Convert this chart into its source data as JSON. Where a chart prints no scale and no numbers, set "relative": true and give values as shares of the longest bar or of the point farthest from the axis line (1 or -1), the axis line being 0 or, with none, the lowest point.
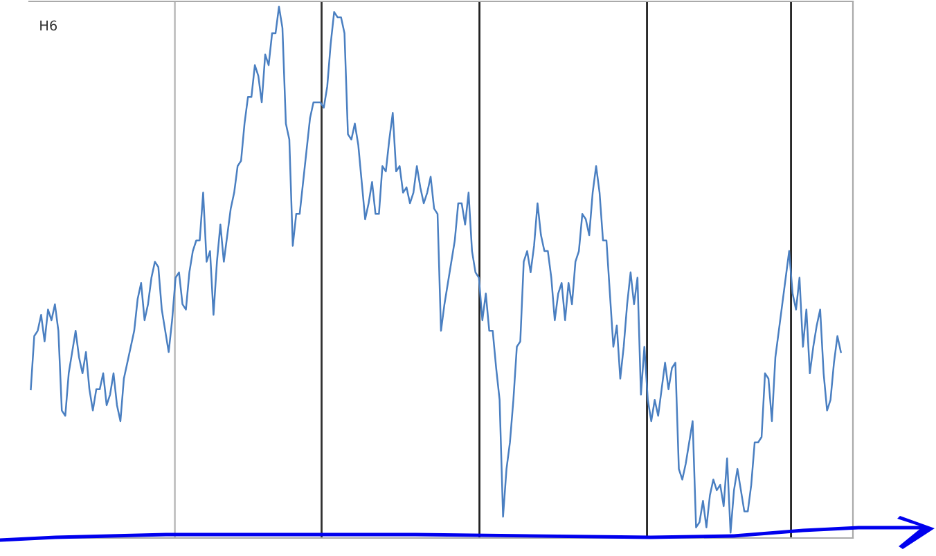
{
  "chart_data": {
    "type": "line",
    "title": "H6",
    "relative": true,
    "marker": "none",
    "line_style": "solid",
    "categories": [
      null,
      null,
      null,
      null,
      null,
      null,
      null,
      null,
      null,
      null,
      null,
      null,
      null,
      null,
      null,
      null,
      null,
      null,
      null,
      null,
      null,
      null,
      null,
      null,
      null,
      null,
      null,
      null,
      null,
      null,
      null,
      null,
      null,
      null,
      null,
      null,
      null,
      null,
      null,
      null,
      null,
      null,
      null,
      null,
      null,
      null,
      null,
      null,
      null,
      null,
      null,
      null,
      null,
      null,
      null,
      null,
      null,
      null,
      null,
      null,
      null,
      null,
      null,
      null,
      null,
      null,
      null,
      null,
      null,
      null,
      null,
      null,
      null,
      null,
      null,
      null,
      null,
      null,
      null,
      null,
      null,
      null,
      null,
      null,
      null,
      null,
      null,
      null,
      null,
      null,
      null,
      null,
      null,
      null,
      null,
      null,
      null,
      null,
      null,
      null,
      null,
      null,
      null,
      null,
      null,
      null,
      null,
      null,
      null,
      null,
      null,
      null,
      null,
      null,
      null,
      null,
      null,
      null,
      null,
      null,
      null,
      null,
      null,
      null,
      null,
      null,
      null,
      null,
      null,
      null,
      null,
      null,
      null,
      null,
      null,
      null,
      null,
      null,
      null,
      null,
      null,
      null,
      null,
      null,
      null,
      null,
      null,
      null,
      null,
      null,
      null,
      null,
      null,
      null,
      null,
      null,
      null,
      null,
      null,
      null,
      null,
      null,
      null,
      null,
      null,
      null,
      null,
      null,
      null,
      null,
      null,
      null,
      null,
      null,
      null,
      null,
      null,
      null,
      null,
      null,
      null,
      null,
      null,
      null,
      null,
      null,
      null,
      null,
      null,
      null,
      null,
      null,
      null,
      null,
      null,
      null,
      null,
      null,
      null,
      null,
      null,
      null,
      null,
      null,
      null,
      null,
      null,
      null,
      null,
      null,
      null,
      null,
      null,
      null,
      null,
      null,
      null,
      null,
      null,
      null,
      null,
      null,
      null,
      null,
      null,
      null,
      null,
      null,
      null,
      null,
      null,
      null,
      null,
      null,
      null,
      null
    ],
    "series": [
      {
        "color": "#4a7fc1",
        "values": [
          0.28,
          0.38,
          0.39,
          0.42,
          0.37,
          0.43,
          0.41,
          0.44,
          0.39,
          0.24,
          0.23,
          0.31,
          0.35,
          0.39,
          0.34,
          0.31,
          0.35,
          0.28,
          0.24,
          0.28,
          0.28,
          0.31,
          0.25,
          0.27,
          0.31,
          0.25,
          0.22,
          0.3,
          0.33,
          0.36,
          0.39,
          0.45,
          0.48,
          0.41,
          0.44,
          0.49,
          0.52,
          0.51,
          0.43,
          0.39,
          0.35,
          0.41,
          0.49,
          0.5,
          0.44,
          0.43,
          0.5,
          0.54,
          0.56,
          0.56,
          0.65,
          0.52,
          0.54,
          0.42,
          0.52,
          0.59,
          0.52,
          0.57,
          0.62,
          0.65,
          0.7,
          0.71,
          0.78,
          0.83,
          0.83,
          0.89,
          0.87,
          0.82,
          0.91,
          0.89,
          0.95,
          0.95,
          1.0,
          0.96,
          0.78,
          0.75,
          0.55,
          0.61,
          0.61,
          0.67,
          0.73,
          0.79,
          0.82,
          0.82,
          0.82,
          0.81,
          0.85,
          0.93,
          0.99,
          0.98,
          0.98,
          0.95,
          0.76,
          0.75,
          0.78,
          0.74,
          0.67,
          0.6,
          0.63,
          0.67,
          0.61,
          0.61,
          0.7,
          0.69,
          0.75,
          0.8,
          0.69,
          0.7,
          0.65,
          0.66,
          0.63,
          0.65,
          0.7,
          0.66,
          0.63,
          0.65,
          0.68,
          0.62,
          0.61,
          0.39,
          0.44,
          0.48,
          0.52,
          0.56,
          0.63,
          0.63,
          0.59,
          0.65,
          0.54,
          0.5,
          0.49,
          0.41,
          0.46,
          0.39,
          0.39,
          0.32,
          0.26,
          0.04,
          0.13,
          0.18,
          0.26,
          0.36,
          0.37,
          0.52,
          0.54,
          0.5,
          0.55,
          0.63,
          0.57,
          0.54,
          0.54,
          0.49,
          0.41,
          0.46,
          0.48,
          0.41,
          0.48,
          0.44,
          0.52,
          0.54,
          0.61,
          0.6,
          0.57,
          0.65,
          0.7,
          0.65,
          0.56,
          0.56,
          0.46,
          0.36,
          0.4,
          0.3,
          0.36,
          0.44,
          0.5,
          0.44,
          0.49,
          0.27,
          0.36,
          0.26,
          0.22,
          0.26,
          0.23,
          0.28,
          0.33,
          0.28,
          0.32,
          0.33,
          0.13,
          0.11,
          0.14,
          0.18,
          0.22,
          0.02,
          0.03,
          0.07,
          0.02,
          0.08,
          0.11,
          0.09,
          0.1,
          0.06,
          0.15,
          0.01,
          0.09,
          0.13,
          0.09,
          0.05,
          0.05,
          0.1,
          0.18,
          0.18,
          0.19,
          0.31,
          0.3,
          0.22,
          0.34,
          0.39,
          0.44,
          0.49,
          0.54,
          0.46,
          0.43,
          0.49,
          0.36,
          0.43,
          0.31,
          0.36,
          0.4,
          0.43,
          0.31,
          0.24,
          0.26,
          0.33,
          0.38,
          0.35
        ]
      }
    ]
  }
}
